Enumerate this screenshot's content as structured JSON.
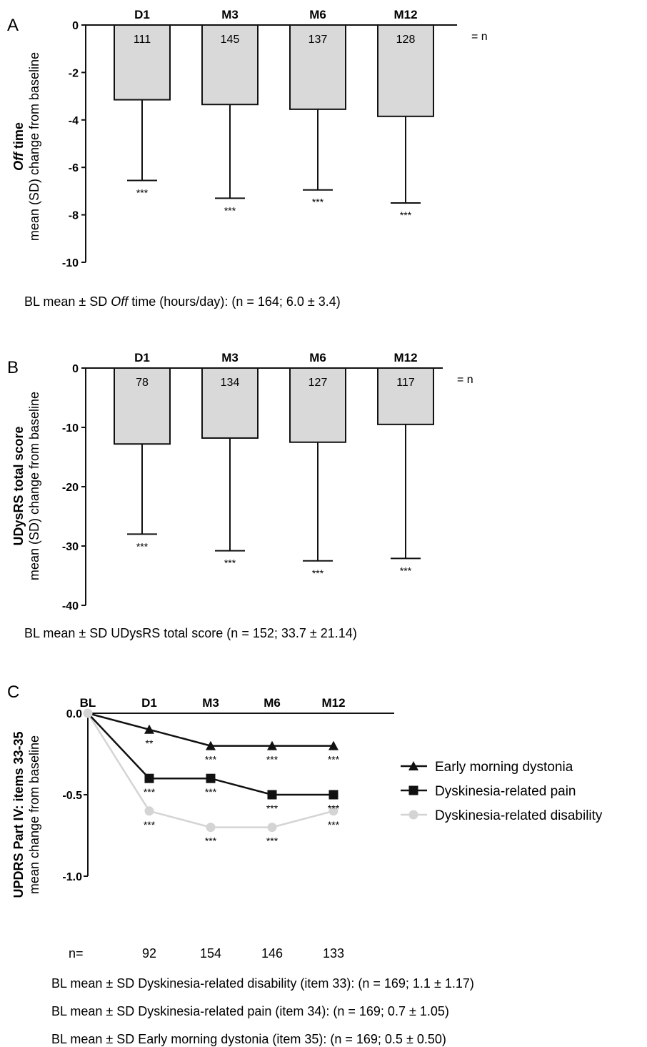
{
  "panels": [
    {
      "letter": "A",
      "chart_data": {
        "type": "bar",
        "categories": [
          "D1",
          "M3",
          "M6",
          "M12"
        ],
        "values": [
          -3.15,
          -3.35,
          -3.55,
          -3.85
        ],
        "error_sd": [
          3.4,
          3.95,
          3.4,
          3.65
        ],
        "n_labels": [
          "111",
          "145",
          "137",
          "128"
        ],
        "significance": [
          "***",
          "***",
          "***",
          "***"
        ],
        "n_suffix": "= n",
        "ylim": [
          -10,
          0
        ],
        "yticks": [
          "0",
          "-2",
          "-4",
          "-6",
          "-8",
          "-10"
        ],
        "ytick_values": [
          0,
          -2,
          -4,
          -6,
          -8,
          -10
        ],
        "ylabel_line1_italic": "Off",
        "ylabel_line1_rest": " time",
        "ylabel_line2": "mean (SD) change from baseline"
      },
      "footnote": {
        "pre": "BL mean ± SD ",
        "ital": "Off",
        "post": " time (hours/day): (n = 164; 6.0 ± 3.4)"
      }
    },
    {
      "letter": "B",
      "chart_data": {
        "type": "bar",
        "categories": [
          "D1",
          "M3",
          "M6",
          "M12"
        ],
        "values": [
          -12.8,
          -11.8,
          -12.5,
          -9.5
        ],
        "error_sd": [
          15.2,
          19.0,
          20.0,
          22.6
        ],
        "n_labels": [
          "78",
          "134",
          "127",
          "117"
        ],
        "significance": [
          "***",
          "***",
          "***",
          "***"
        ],
        "n_suffix": "= n",
        "ylim": [
          -40,
          0
        ],
        "yticks": [
          "0",
          "-10",
          "-20",
          "-30",
          "-40"
        ],
        "ytick_values": [
          0,
          -10,
          -20,
          -30,
          -40
        ],
        "ylabel_line1": "UDysRS total score",
        "ylabel_line2": "mean (SD) change from baseline"
      },
      "footnote": "BL mean ± SD UDysRS total score (n = 152; 33.7 ± 21.14)"
    },
    {
      "letter": "C",
      "chart_data": {
        "type": "line",
        "x": [
          "BL",
          "D1",
          "M3",
          "M6",
          "M12"
        ],
        "series": [
          {
            "name": "Early morning dystonia",
            "values": [
              0,
              -0.1,
              -0.2,
              -0.2,
              -0.2
            ],
            "stars": [
              "",
              "**",
              "***",
              "***",
              "***"
            ],
            "color": "#111111",
            "marker": "triangle"
          },
          {
            "name": "Dyskinesia-related pain",
            "values": [
              0,
              -0.4,
              -0.4,
              -0.5,
              -0.5
            ],
            "stars": [
              "",
              "***",
              "***",
              "***",
              "***"
            ],
            "color": "#111111",
            "marker": "square"
          },
          {
            "name": "Dyskinesia-related disability",
            "values": [
              0,
              -0.6,
              -0.7,
              -0.7,
              -0.6
            ],
            "stars": [
              "",
              "***",
              "***",
              "***",
              "***"
            ],
            "color": "#d4d4d4",
            "marker": "circle"
          }
        ],
        "ylim": [
          -1.0,
          0
        ],
        "yticks": [
          "0.0",
          "-0.5",
          "-1.0"
        ],
        "ytick_values": [
          0,
          -0.5,
          -1.0
        ],
        "ylabel_line1": "UPDRS Part IV: items 33-35",
        "ylabel_line2": "mean change from baseline",
        "n_prefix": "n=",
        "n_labels": [
          "92",
          "154",
          "146",
          "133"
        ]
      },
      "footnotes": [
        "BL mean ± SD Dyskinesia-related disability (item 33): (n = 169; 1.1 ± 1.17)",
        "BL mean ± SD Dyskinesia-related pain (item 34): (n = 169; 0.7 ± 1.05)",
        "BL mean ± SD Early morning dystonia (item 35): (n = 169; 0.5 ± 0.50)"
      ]
    }
  ]
}
